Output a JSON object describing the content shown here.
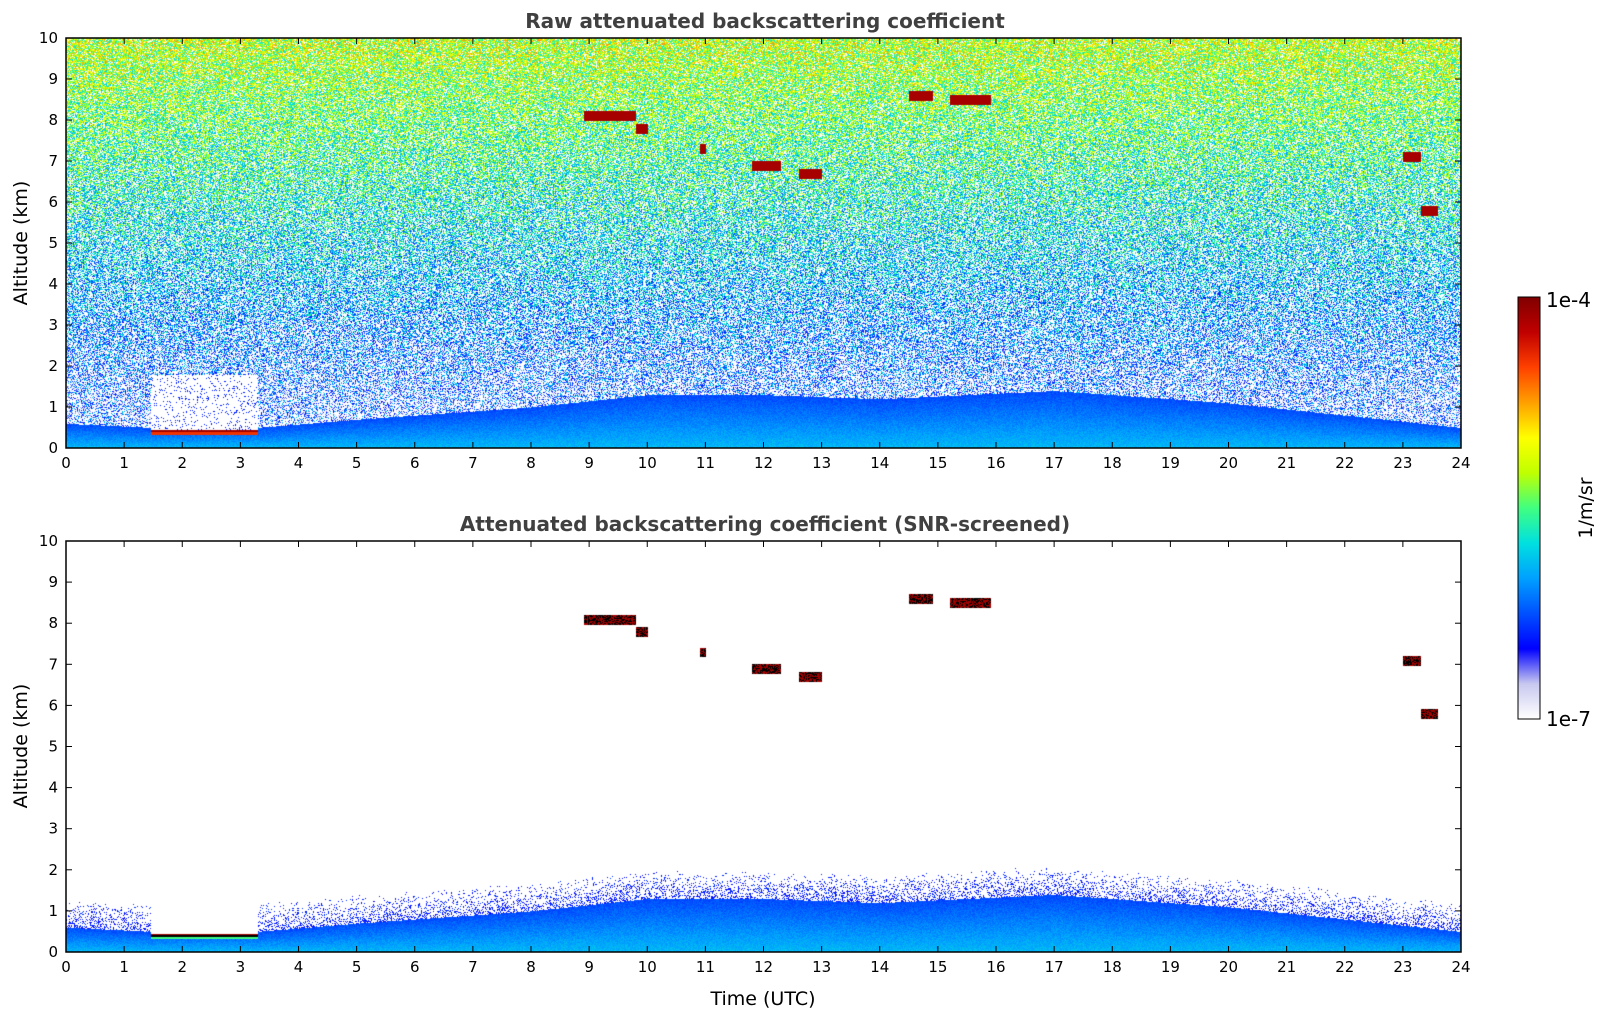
{
  "colors": {
    "background": "#ffffff",
    "title_text": "#404040",
    "colormap": [
      "#ffffff",
      "#c8c8f0",
      "#0000ff",
      "#0050ff",
      "#00a0ff",
      "#00e0e0",
      "#40ff80",
      "#c0ff00",
      "#ffff00",
      "#ffa000",
      "#ff4000",
      "#c00000",
      "#800000"
    ],
    "screened_cloud_core": "#000000"
  },
  "chart_data": [
    {
      "type": "heatmap",
      "title": "Raw attenuated backscattering coefficient",
      "xlabel": "",
      "ylabel": "Altitude (km)",
      "xlim": [
        0,
        24
      ],
      "ylim": [
        0,
        10
      ],
      "xticks": [
        "0",
        "1",
        "2",
        "3",
        "4",
        "5",
        "6",
        "7",
        "8",
        "9",
        "10",
        "11",
        "12",
        "13",
        "14",
        "15",
        "16",
        "17",
        "18",
        "19",
        "20",
        "21",
        "22",
        "23",
        "24"
      ],
      "yticks": [
        "0",
        "1",
        "2",
        "3",
        "4",
        "5",
        "6",
        "7",
        "8",
        "9",
        "10"
      ],
      "scale": "log",
      "features": {
        "boundary_layer_top_km": [
          [
            0,
            0.6
          ],
          [
            1.5,
            0.5
          ],
          [
            3.3,
            0.5
          ],
          [
            5,
            0.7
          ],
          [
            8,
            1.0
          ],
          [
            10,
            1.3
          ],
          [
            12,
            1.3
          ],
          [
            14,
            1.2
          ],
          [
            17,
            1.4
          ],
          [
            18,
            1.3
          ],
          [
            20,
            1.1
          ],
          [
            22,
            0.8
          ],
          [
            24,
            0.5
          ]
        ],
        "gap_no_signal": {
          "t_start": 1.45,
          "t_end": 3.3,
          "alt_max_km": 1.8
        },
        "low_cloud": {
          "t_start": 1.5,
          "t_end": 3.3,
          "alt_km": 0.4
        },
        "cirrus": [
          {
            "t": 8.9,
            "t2": 9.8,
            "alt_km": 8.1
          },
          {
            "t": 9.8,
            "t2": 10.0,
            "alt_km": 7.8
          },
          {
            "t": 11.8,
            "t2": 12.3,
            "alt_km": 6.9
          },
          {
            "t": 12.6,
            "t2": 13.0,
            "alt_km": 6.7
          },
          {
            "t": 14.5,
            "t2": 14.9,
            "alt_km": 8.6
          },
          {
            "t": 15.2,
            "t2": 15.9,
            "alt_km": 8.5
          },
          {
            "t": 23.0,
            "t2": 23.3,
            "alt_km": 7.1
          },
          {
            "t": 23.3,
            "t2": 23.6,
            "alt_km": 5.8
          },
          {
            "t": 10.9,
            "t2": 11.0,
            "alt_km": 7.3
          }
        ]
      }
    },
    {
      "type": "heatmap",
      "title": "Attenuated backscattering coefficient (SNR-screened)",
      "xlabel": "Time (UTC)",
      "ylabel": "Altitude (km)",
      "xlim": [
        0,
        24
      ],
      "ylim": [
        0,
        10
      ],
      "xticks": [
        "0",
        "1",
        "2",
        "3",
        "4",
        "5",
        "6",
        "7",
        "8",
        "9",
        "10",
        "11",
        "12",
        "13",
        "14",
        "15",
        "16",
        "17",
        "18",
        "19",
        "20",
        "21",
        "22",
        "23",
        "24"
      ],
      "yticks": [
        "0",
        "1",
        "2",
        "3",
        "4",
        "5",
        "6",
        "7",
        "8",
        "9",
        "10"
      ],
      "scale": "log"
    }
  ],
  "colorbar": {
    "label": "1/m/sr",
    "max_label": "1e-4",
    "min_label": "1e-7"
  }
}
